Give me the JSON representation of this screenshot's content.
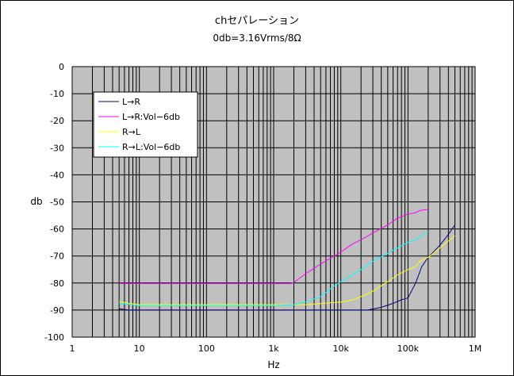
{
  "chart_data": {
    "type": "line",
    "title": "chセパレーション",
    "subtitle": "0db=3.16Vrms/8Ω",
    "xlabel": "Hz",
    "ylabel": "db",
    "xscale": "log",
    "xlim": [
      1,
      1000000
    ],
    "ylim": [
      -100,
      0
    ],
    "xticks": [
      1,
      10,
      100,
      1000,
      10000,
      100000,
      1000000
    ],
    "xtick_labels": [
      "1",
      "10",
      "100",
      "1k",
      "10k",
      "100k",
      "1M"
    ],
    "yticks": [
      0,
      -10,
      -20,
      -30,
      -40,
      -50,
      -60,
      -70,
      -80,
      -90,
      -100
    ],
    "ytick_labels": [
      "0",
      "-10",
      "-20",
      "-30",
      "-40",
      "-50",
      "-60",
      "-70",
      "-80",
      "-90",
      "-100"
    ],
    "grid": true,
    "plot_background": "#c0c0c0",
    "legend_position": "top-left",
    "series": [
      {
        "name": "L→R",
        "color": "#000080",
        "points": [
          [
            5,
            -89.5
          ],
          [
            7,
            -90
          ],
          [
            20,
            -90
          ],
          [
            100,
            -90
          ],
          [
            1000,
            -90
          ],
          [
            10000,
            -90
          ],
          [
            25000,
            -90
          ],
          [
            30000,
            -89.6
          ],
          [
            40000,
            -89
          ],
          [
            60000,
            -87.5
          ],
          [
            80000,
            -86.2
          ],
          [
            100000,
            -85.5
          ],
          [
            130000,
            -80
          ],
          [
            160000,
            -74
          ],
          [
            200000,
            -70.5
          ],
          [
            300000,
            -66
          ],
          [
            400000,
            -62
          ],
          [
            500000,
            -58.5
          ]
        ]
      },
      {
        "name": "L→R:Vol−6db",
        "color": "#ff00ff",
        "points": [
          [
            5,
            -80.2
          ],
          [
            20,
            -80.2
          ],
          [
            100,
            -80.2
          ],
          [
            1000,
            -80.2
          ],
          [
            1800,
            -80.2
          ],
          [
            2000,
            -79.8
          ],
          [
            2500,
            -78
          ],
          [
            3000,
            -76.5
          ],
          [
            5000,
            -73
          ],
          [
            8000,
            -70
          ],
          [
            10000,
            -68.5
          ],
          [
            15000,
            -65.5
          ],
          [
            20000,
            -64
          ],
          [
            30000,
            -61.5
          ],
          [
            50000,
            -58.5
          ],
          [
            70000,
            -56
          ],
          [
            100000,
            -54.5
          ],
          [
            130000,
            -54
          ],
          [
            150000,
            -53.2
          ],
          [
            200000,
            -52.8
          ]
        ]
      },
      {
        "name": "R→L",
        "color": "#ffff00",
        "points": [
          [
            5,
            -86.8
          ],
          [
            7,
            -87.5
          ],
          [
            10,
            -88
          ],
          [
            100,
            -88
          ],
          [
            1000,
            -88
          ],
          [
            3000,
            -88
          ],
          [
            5000,
            -87.6
          ],
          [
            7000,
            -87.3
          ],
          [
            10000,
            -87
          ],
          [
            15000,
            -86.3
          ],
          [
            20000,
            -85
          ],
          [
            30000,
            -83
          ],
          [
            50000,
            -79.5
          ],
          [
            70000,
            -77
          ],
          [
            100000,
            -75
          ],
          [
            130000,
            -74
          ],
          [
            150000,
            -72
          ],
          [
            200000,
            -70.5
          ],
          [
            300000,
            -67
          ],
          [
            500000,
            -62.5
          ]
        ]
      },
      {
        "name": "R→L:Vol−6db",
        "color": "#00ffff",
        "points": [
          [
            5,
            -87.5
          ],
          [
            10,
            -88.3
          ],
          [
            100,
            -88.3
          ],
          [
            1000,
            -88.3
          ],
          [
            2000,
            -88
          ],
          [
            3000,
            -87
          ],
          [
            5000,
            -85
          ],
          [
            8000,
            -81
          ],
          [
            10000,
            -79.5
          ],
          [
            15000,
            -77
          ],
          [
            20000,
            -75
          ],
          [
            30000,
            -72
          ],
          [
            50000,
            -69
          ],
          [
            70000,
            -67
          ],
          [
            100000,
            -65
          ],
          [
            130000,
            -64
          ],
          [
            150000,
            -63
          ],
          [
            200000,
            -61
          ]
        ]
      }
    ]
  }
}
